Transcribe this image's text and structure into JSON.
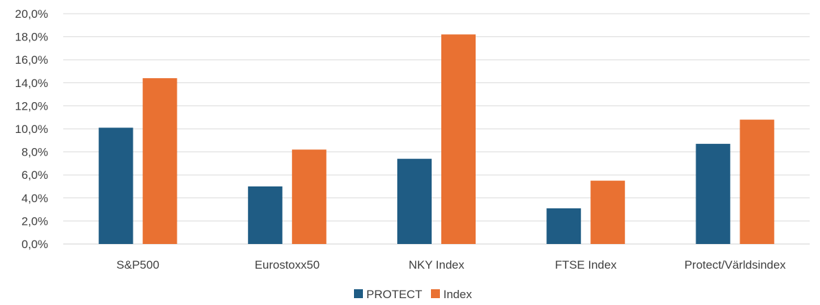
{
  "chart_data": {
    "type": "bar",
    "categories": [
      "S&P500",
      "Eurostoxx50",
      "NKY Index",
      "FTSE Index",
      "Protect/Världsindex"
    ],
    "series": [
      {
        "name": "PROTECT",
        "color": "#1f5c84",
        "values": [
          10.1,
          5.0,
          7.4,
          3.1,
          8.7
        ]
      },
      {
        "name": "Index",
        "color": "#e97132",
        "values": [
          14.4,
          8.2,
          18.2,
          5.5,
          10.8
        ]
      }
    ],
    "ylim": [
      0,
      20
    ],
    "yticks": [
      "0,0%",
      "2,0%",
      "4,0%",
      "6,0%",
      "8,0%",
      "10,0%",
      "12,0%",
      "14,0%",
      "16,0%",
      "18,0%",
      "20,0%"
    ],
    "grid": true,
    "legend": "bottom-center",
    "title": "",
    "xlabel": "",
    "ylabel": ""
  }
}
